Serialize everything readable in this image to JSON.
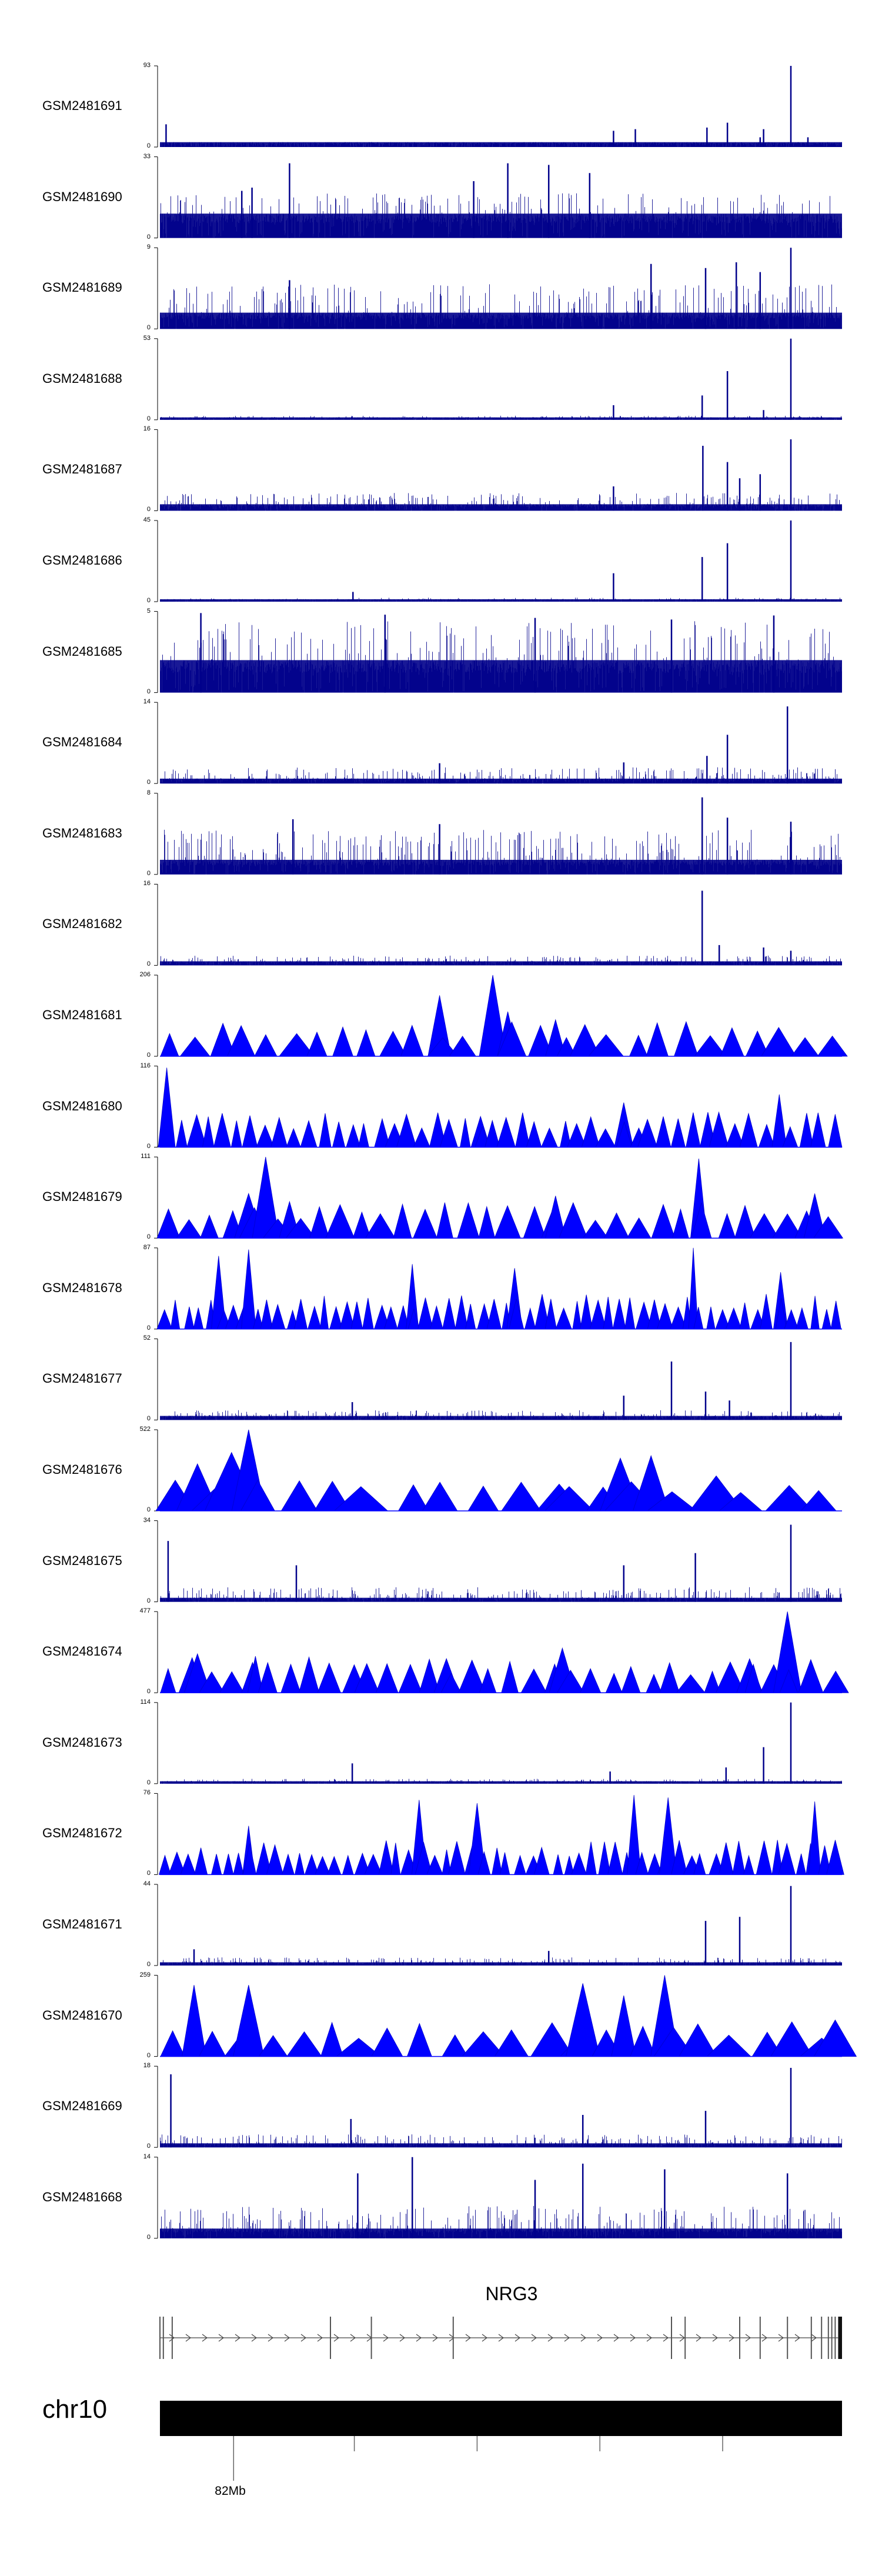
{
  "chart_data": {
    "type": "area",
    "chromosome": "chr10",
    "gene": "NRG3",
    "position_label": "82Mb",
    "tracks": [
      {
        "name": "GSM2481691",
        "ymax": "93",
        "ymin": "0",
        "style": "bars",
        "baseline": 0.06,
        "noise": 0.05,
        "peaks": [
          [
            0.009,
            0.28
          ],
          [
            0.665,
            0.2
          ],
          [
            0.697,
            0.22
          ],
          [
            0.802,
            0.24
          ],
          [
            0.832,
            0.3
          ],
          [
            0.885,
            0.22
          ],
          [
            0.88,
            0.12
          ],
          [
            0.925,
            1.0
          ],
          [
            0.95,
            0.12
          ]
        ]
      },
      {
        "name": "GSM2481690",
        "ymax": "33",
        "ymin": "0",
        "style": "bars",
        "baseline": 0.3,
        "noise": 0.55,
        "peaks": [
          [
            0.19,
            0.92
          ],
          [
            0.51,
            0.92
          ],
          [
            0.57,
            0.9
          ],
          [
            0.63,
            0.8
          ],
          [
            0.46,
            0.7
          ],
          [
            0.135,
            0.62
          ],
          [
            0.12,
            0.58
          ]
        ]
      },
      {
        "name": "GSM2481689",
        "ymax": "9",
        "ymin": "0",
        "style": "bars",
        "baseline": 0.2,
        "noise": 0.55,
        "peaks": [
          [
            0.925,
            1.0
          ],
          [
            0.72,
            0.8
          ],
          [
            0.8,
            0.75
          ],
          [
            0.88,
            0.7
          ],
          [
            0.19,
            0.6
          ],
          [
            0.845,
            0.82
          ]
        ]
      },
      {
        "name": "GSM2481688",
        "ymax": "53",
        "ymin": "0",
        "style": "bars",
        "baseline": 0.03,
        "noise": 0.05,
        "peaks": [
          [
            0.665,
            0.18
          ],
          [
            0.795,
            0.3
          ],
          [
            0.832,
            0.6
          ],
          [
            0.925,
            1.0
          ],
          [
            0.885,
            0.12
          ]
        ]
      },
      {
        "name": "GSM2481687",
        "ymax": "16",
        "ymin": "0",
        "style": "bars",
        "baseline": 0.08,
        "noise": 0.22,
        "peaks": [
          [
            0.796,
            0.8
          ],
          [
            0.832,
            0.6
          ],
          [
            0.925,
            0.88
          ],
          [
            0.665,
            0.3
          ],
          [
            0.88,
            0.45
          ],
          [
            0.85,
            0.4
          ]
        ]
      },
      {
        "name": "GSM2481686",
        "ymax": "45",
        "ymin": "0",
        "style": "bars",
        "baseline": 0.03,
        "noise": 0.05,
        "peaks": [
          [
            0.665,
            0.35
          ],
          [
            0.795,
            0.55
          ],
          [
            0.832,
            0.72
          ],
          [
            0.925,
            1.0
          ],
          [
            0.283,
            0.12
          ]
        ]
      },
      {
        "name": "GSM2481685",
        "ymax": "5",
        "ymin": "0",
        "style": "bars",
        "baseline": 0.4,
        "noise": 0.88,
        "peaks": [
          [
            0.06,
            0.98
          ],
          [
            0.33,
            0.96
          ],
          [
            0.55,
            0.92
          ],
          [
            0.75,
            0.9
          ],
          [
            0.9,
            0.95
          ]
        ]
      },
      {
        "name": "GSM2481684",
        "ymax": "14",
        "ymin": "0",
        "style": "bars",
        "baseline": 0.06,
        "noise": 0.2,
        "peaks": [
          [
            0.832,
            0.6
          ],
          [
            0.92,
            0.95
          ],
          [
            0.802,
            0.34
          ],
          [
            0.41,
            0.25
          ],
          [
            0.68,
            0.26
          ]
        ]
      },
      {
        "name": "GSM2481683",
        "ymax": "8",
        "ymin": "0",
        "style": "bars",
        "baseline": 0.18,
        "noise": 0.55,
        "peaks": [
          [
            0.795,
            0.95
          ],
          [
            0.832,
            0.7
          ],
          [
            0.925,
            0.65
          ],
          [
            0.195,
            0.68
          ],
          [
            0.41,
            0.62
          ]
        ]
      },
      {
        "name": "GSM2481682",
        "ymax": "16",
        "ymin": "0",
        "style": "bars",
        "baseline": 0.05,
        "noise": 0.12,
        "peaks": [
          [
            0.795,
            0.92
          ],
          [
            0.82,
            0.25
          ],
          [
            0.885,
            0.22
          ],
          [
            0.925,
            0.18
          ]
        ]
      },
      {
        "name": "GSM2481681",
        "ymax": "206",
        "ymin": "0",
        "style": "triangles",
        "n": 28,
        "seed": 11,
        "peaks": [
          [
            0.488,
            1.0
          ],
          [
            0.41,
            0.75
          ],
          [
            0.51,
            0.55
          ],
          [
            0.58,
            0.45
          ]
        ]
      },
      {
        "name": "GSM2481680",
        "ymax": "116",
        "ymin": "0",
        "style": "triangles",
        "n": 48,
        "seed": 23,
        "peaks": [
          [
            0.01,
            0.98
          ],
          [
            0.908,
            0.65
          ],
          [
            0.68,
            0.55
          ],
          [
            0.47,
            0.38
          ]
        ]
      },
      {
        "name": "GSM2481679",
        "ymax": "111",
        "ymin": "0",
        "style": "triangles",
        "n": 32,
        "seed": 37,
        "peaks": [
          [
            0.155,
            1.0
          ],
          [
            0.79,
            0.98
          ],
          [
            0.13,
            0.55
          ],
          [
            0.96,
            0.55
          ],
          [
            0.19,
            0.45
          ],
          [
            0.58,
            0.52
          ]
        ]
      },
      {
        "name": "GSM2481678",
        "ymax": "87",
        "ymin": "0",
        "style": "triangles",
        "n": 60,
        "seed": 53,
        "peaks": [
          [
            0.782,
            1.0
          ],
          [
            0.13,
            0.98
          ],
          [
            0.086,
            0.9
          ],
          [
            0.37,
            0.8
          ],
          [
            0.52,
            0.75
          ],
          [
            0.91,
            0.7
          ]
        ]
      },
      {
        "name": "GSM2481677",
        "ymax": "52",
        "ymin": "0",
        "style": "bars",
        "baseline": 0.05,
        "noise": 0.12,
        "peaks": [
          [
            0.75,
            0.72
          ],
          [
            0.925,
            0.96
          ],
          [
            0.8,
            0.35
          ],
          [
            0.68,
            0.3
          ],
          [
            0.282,
            0.22
          ],
          [
            0.835,
            0.24
          ]
        ]
      },
      {
        "name": "GSM2481676",
        "ymax": "522",
        "ymin": "0",
        "style": "triangles",
        "n": 18,
        "seed": 71,
        "peaks": [
          [
            0.055,
            0.58
          ],
          [
            0.105,
            0.72
          ],
          [
            0.13,
            1.0
          ],
          [
            0.675,
            0.65
          ],
          [
            0.72,
            0.68
          ],
          [
            0.6,
            0.3
          ]
        ]
      },
      {
        "name": "GSM2481675",
        "ymax": "34",
        "ymin": "0",
        "style": "bars",
        "baseline": 0.05,
        "noise": 0.18,
        "peaks": [
          [
            0.012,
            0.75
          ],
          [
            0.925,
            0.95
          ],
          [
            0.785,
            0.6
          ],
          [
            0.68,
            0.45
          ],
          [
            0.2,
            0.45
          ]
        ]
      },
      {
        "name": "GSM2481674",
        "ymax": "477",
        "ymin": "0",
        "style": "triangles",
        "n": 34,
        "seed": 89,
        "peaks": [
          [
            0.92,
            1.0
          ],
          [
            0.59,
            0.55
          ],
          [
            0.055,
            0.48
          ],
          [
            0.14,
            0.45
          ],
          [
            0.42,
            0.42
          ],
          [
            0.87,
            0.35
          ]
        ]
      },
      {
        "name": "GSM2481673",
        "ymax": "114",
        "ymin": "0",
        "style": "bars",
        "baseline": 0.03,
        "noise": 0.06,
        "peaks": [
          [
            0.925,
            1.0
          ],
          [
            0.885,
            0.45
          ],
          [
            0.282,
            0.25
          ],
          [
            0.66,
            0.15
          ],
          [
            0.83,
            0.2
          ]
        ]
      },
      {
        "name": "GSM2481672",
        "ymax": "76",
        "ymin": "0",
        "style": "triangles",
        "n": 56,
        "seed": 97,
        "peaks": [
          [
            0.695,
            0.98
          ],
          [
            0.745,
            0.95
          ],
          [
            0.38,
            0.92
          ],
          [
            0.96,
            0.9
          ],
          [
            0.465,
            0.88
          ],
          [
            0.13,
            0.6
          ]
        ]
      },
      {
        "name": "GSM2481671",
        "ymax": "44",
        "ymin": "0",
        "style": "bars",
        "baseline": 0.04,
        "noise": 0.1,
        "peaks": [
          [
            0.925,
            0.98
          ],
          [
            0.8,
            0.55
          ],
          [
            0.85,
            0.6
          ],
          [
            0.05,
            0.2
          ],
          [
            0.57,
            0.18
          ]
        ]
      },
      {
        "name": "GSM2481670",
        "ymax": "259",
        "ymin": "0",
        "style": "triangles",
        "n": 22,
        "seed": 101,
        "peaks": [
          [
            0.74,
            1.0
          ],
          [
            0.62,
            0.9
          ],
          [
            0.05,
            0.88
          ],
          [
            0.13,
            0.88
          ],
          [
            0.68,
            0.75
          ],
          [
            0.99,
            0.45
          ]
        ]
      },
      {
        "name": "GSM2481669",
        "ymax": "18",
        "ymin": "0",
        "style": "bars",
        "baseline": 0.05,
        "noise": 0.16,
        "peaks": [
          [
            0.016,
            0.9
          ],
          [
            0.925,
            0.98
          ],
          [
            0.8,
            0.45
          ],
          [
            0.62,
            0.4
          ],
          [
            0.28,
            0.35
          ]
        ]
      },
      {
        "name": "GSM2481668",
        "ymax": "14",
        "ymin": "0",
        "style": "bars",
        "baseline": 0.12,
        "noise": 0.4,
        "peaks": [
          [
            0.37,
            1.0
          ],
          [
            0.62,
            0.92
          ],
          [
            0.74,
            0.85
          ],
          [
            0.29,
            0.8
          ],
          [
            0.92,
            0.8
          ],
          [
            0.55,
            0.72
          ]
        ]
      }
    ],
    "gene_exons": [
      0.0,
      0.005,
      0.018,
      0.25,
      0.31,
      0.43,
      0.75,
      0.77,
      0.85,
      0.88,
      0.92,
      0.955,
      0.97,
      0.98,
      0.985,
      0.99,
      0.995
    ],
    "scale_ticks": [
      0.108,
      0.285,
      0.465,
      0.645,
      0.825
    ],
    "colors": {
      "signal_dark": "#00008b",
      "signal_blue": "#0000ff",
      "axis": "#000000"
    }
  }
}
